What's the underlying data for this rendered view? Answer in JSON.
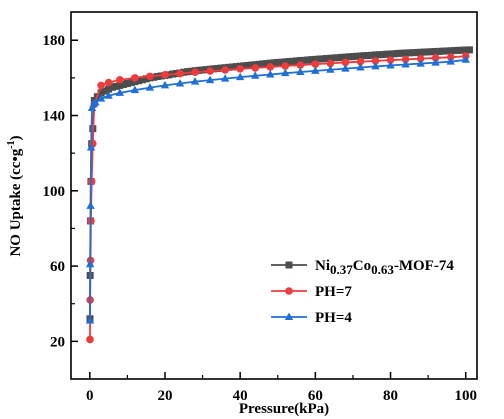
{
  "chart_data": {
    "type": "line",
    "title": "",
    "xlabel": "Pressure(kPa)",
    "ylabel": {
      "main": "NO Uptake (cc•g",
      "sup": "-1",
      "end": ")"
    },
    "xlim": [
      -5,
      103
    ],
    "ylim": [
      0,
      195
    ],
    "x_ticks": [
      0,
      20,
      40,
      60,
      80,
      100
    ],
    "x_tick_labels": [
      "0",
      "20",
      "40",
      "60",
      "80",
      "100"
    ],
    "y_ticks": [
      20,
      60,
      100,
      140,
      180
    ],
    "y_tick_labels": [
      "20",
      "60",
      "100",
      "140",
      "180"
    ],
    "grid": false,
    "legend_position": "bottom-right",
    "series": [
      {
        "name": "Ni0.37Co0.63-MOF-74",
        "name_parts": [
          {
            "t": "Ni",
            "sub": false
          },
          {
            "t": "0.37",
            "sub": true
          },
          {
            "t": "Co",
            "sub": false
          },
          {
            "t": "0.63",
            "sub": true
          },
          {
            "t": "-MOF-74",
            "sub": false
          }
        ],
        "color": "#4d4d4d",
        "marker": "square",
        "x": [
          0.05,
          0.1,
          0.2,
          0.3,
          0.5,
          0.8,
          1.2,
          2,
          3,
          4,
          5,
          6,
          7,
          8,
          9,
          10,
          11,
          12,
          13,
          14,
          15,
          16,
          17,
          18,
          19,
          20,
          21,
          22,
          23,
          24,
          25,
          26,
          27,
          28,
          29,
          30,
          31,
          32,
          33,
          34,
          35,
          36,
          37,
          38,
          39,
          40,
          41,
          42,
          43,
          44,
          45,
          46,
          47,
          48,
          49,
          50,
          51,
          52,
          53,
          54,
          55,
          56,
          57,
          58,
          59,
          60,
          61,
          62,
          63,
          64,
          65,
          66,
          67,
          68,
          69,
          70,
          71,
          72,
          73,
          74,
          75,
          76,
          77,
          78,
          79,
          80,
          81,
          82,
          83,
          84,
          85,
          86,
          87,
          88,
          89,
          90,
          91,
          92,
          93,
          94,
          95,
          96,
          97,
          98,
          99,
          100,
          101
        ],
        "y": [
          32,
          55,
          84,
          105,
          125,
          133,
          148,
          150,
          152,
          153,
          154,
          155,
          155.5,
          156,
          156.5,
          157,
          157.5,
          158,
          158.5,
          159,
          159.5,
          160,
          160.3,
          160.7,
          161,
          161.3,
          161.6,
          162,
          162.3,
          162.6,
          163,
          163.3,
          163.5,
          163.8,
          164,
          164.2,
          164.4,
          164.6,
          164.8,
          165,
          165.2,
          165.4,
          165.6,
          165.8,
          166,
          166.2,
          166.4,
          166.6,
          166.8,
          167,
          167.2,
          167.4,
          167.6,
          167.8,
          168,
          168.2,
          168.3,
          168.5,
          168.7,
          168.8,
          169,
          169.2,
          169.3,
          169.5,
          169.7,
          169.8,
          170,
          170.1,
          170.3,
          170.4,
          170.6,
          170.7,
          170.9,
          171,
          171.2,
          171.3,
          171.5,
          171.6,
          171.8,
          171.9,
          172,
          172.2,
          172.3,
          172.4,
          172.6,
          172.7,
          172.8,
          173,
          173.1,
          173.2,
          173.3,
          173.4,
          173.5,
          173.6,
          173.7,
          173.8,
          173.9,
          174,
          174.1,
          174.2,
          174.3,
          174.4,
          174.5,
          174.6,
          174.7,
          174.8,
          174.9
        ]
      },
      {
        "name": "PH=7",
        "name_parts": [
          {
            "t": "PH=7",
            "sub": false
          }
        ],
        "color": "#ee3b3b",
        "marker": "circle",
        "x": [
          0.05,
          0.1,
          0.2,
          0.3,
          0.5,
          0.8,
          1.2,
          3,
          5,
          8,
          12,
          16,
          20,
          24,
          28,
          32,
          36,
          40,
          44,
          48,
          52,
          56,
          60,
          64,
          68,
          72,
          76,
          80,
          84,
          88,
          92,
          96,
          100
        ],
        "y": [
          21,
          42,
          63,
          84,
          105,
          125,
          146,
          156,
          157.5,
          159,
          160,
          160.8,
          161.6,
          162.3,
          163,
          163.6,
          164.2,
          164.8,
          165.3,
          165.8,
          166.3,
          166.8,
          167.3,
          167.7,
          168.2,
          168.6,
          169,
          169.4,
          169.8,
          170.2,
          170.6,
          171,
          171.5
        ]
      },
      {
        "name": "PH=4",
        "name_parts": [
          {
            "t": "PH=4",
            "sub": false
          }
        ],
        "color": "#1f6fd6",
        "marker": "triangle",
        "x": [
          0.05,
          0.1,
          0.2,
          0.35,
          0.6,
          1,
          1.5,
          3,
          5,
          8,
          12,
          16,
          20,
          24,
          28,
          32,
          36,
          40,
          44,
          48,
          52,
          56,
          60,
          64,
          68,
          72,
          76,
          80,
          84,
          88,
          92,
          96,
          100
        ],
        "y": [
          31,
          61,
          92,
          123,
          144,
          146,
          147,
          149,
          150.5,
          152,
          153.5,
          154.8,
          156,
          157,
          158,
          158.8,
          159.6,
          160.4,
          161.1,
          161.8,
          162.5,
          163.1,
          163.7,
          164.3,
          164.9,
          165.5,
          166.1,
          166.6,
          167.1,
          167.6,
          168.1,
          168.6,
          169.6
        ]
      }
    ]
  }
}
